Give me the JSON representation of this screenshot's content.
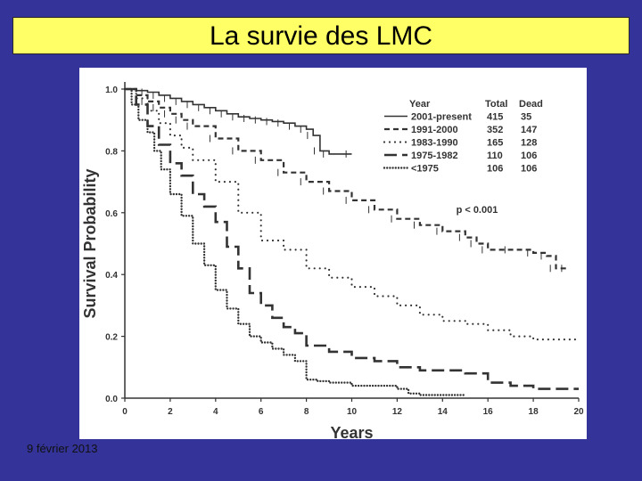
{
  "slide": {
    "title": "La survie des LMC",
    "footer_date": "9 février 2013",
    "colors": {
      "background": "#333399",
      "title_bar": "#ffff66",
      "panel": "#ffffff",
      "ink": "#333333"
    }
  },
  "chart_data": {
    "type": "line",
    "title": "",
    "xlabel": "Years",
    "ylabel": "Survival  Probability",
    "xlim": [
      0,
      20
    ],
    "ylim": [
      0,
      1.0
    ],
    "x_ticks": [
      0,
      2,
      4,
      6,
      8,
      10,
      12,
      14,
      16,
      18,
      20
    ],
    "y_ticks": [
      0.0,
      0.2,
      0.4,
      0.6,
      0.8,
      1.0
    ],
    "y_tick_labels": [
      "0.0",
      "0.2",
      "0.4",
      "0.6",
      "0.8",
      "1.0"
    ],
    "grid": false,
    "legend_position": "top-right",
    "legend_headers": {
      "year": "Year",
      "total": "Total",
      "dead": "Dead"
    },
    "annotation": "p < 0.001",
    "series": [
      {
        "name": "2001-present",
        "total": "415",
        "dead": "35",
        "style": "solid",
        "x": [
          0,
          0.5,
          1,
          1.5,
          2,
          2.5,
          3,
          3.5,
          4,
          4.5,
          5,
          5.5,
          6,
          6.5,
          7,
          7.5,
          8,
          8.3,
          8.6,
          9,
          10
        ],
        "y": [
          1.0,
          0.995,
          0.99,
          0.98,
          0.97,
          0.96,
          0.95,
          0.94,
          0.93,
          0.92,
          0.91,
          0.905,
          0.9,
          0.895,
          0.89,
          0.88,
          0.87,
          0.85,
          0.8,
          0.79,
          0.79
        ]
      },
      {
        "name": "1991-2000",
        "total": "352",
        "dead": "147",
        "style": "dash-short",
        "x": [
          0,
          0.5,
          1,
          1.5,
          2,
          2.5,
          3,
          4,
          5,
          6,
          7,
          8,
          9,
          10,
          11,
          12,
          13,
          14,
          15,
          15.5,
          16,
          17,
          18,
          18.6,
          19,
          19.5
        ],
        "y": [
          1.0,
          0.98,
          0.96,
          0.94,
          0.92,
          0.9,
          0.88,
          0.84,
          0.8,
          0.77,
          0.73,
          0.7,
          0.67,
          0.64,
          0.61,
          0.58,
          0.56,
          0.54,
          0.52,
          0.5,
          0.48,
          0.48,
          0.47,
          0.46,
          0.42,
          0.42
        ]
      },
      {
        "name": "1983-1990",
        "total": "165",
        "dead": "128",
        "style": "dotted-sparse",
        "x": [
          0,
          0.5,
          1,
          1.5,
          2,
          2.5,
          3,
          4,
          5,
          6,
          7,
          8,
          9,
          10,
          11,
          12,
          13,
          14,
          15,
          16,
          17,
          18,
          19,
          20
        ],
        "y": [
          1.0,
          0.97,
          0.93,
          0.89,
          0.85,
          0.81,
          0.77,
          0.7,
          0.6,
          0.51,
          0.48,
          0.42,
          0.39,
          0.36,
          0.33,
          0.3,
          0.27,
          0.25,
          0.24,
          0.22,
          0.2,
          0.19,
          0.19,
          0.19
        ]
      },
      {
        "name": "1975-1982",
        "total": "110",
        "dead": "106",
        "style": "dash-long",
        "x": [
          0,
          0.5,
          1,
          1.5,
          2,
          2.5,
          3,
          3.5,
          4,
          4.5,
          5,
          5.5,
          6,
          6.5,
          7,
          7.5,
          8,
          9,
          10,
          11,
          12,
          13,
          14,
          15,
          16,
          17,
          18,
          19,
          20
        ],
        "y": [
          1.0,
          0.95,
          0.88,
          0.82,
          0.76,
          0.72,
          0.66,
          0.62,
          0.57,
          0.49,
          0.42,
          0.34,
          0.3,
          0.26,
          0.23,
          0.21,
          0.17,
          0.15,
          0.13,
          0.12,
          0.1,
          0.09,
          0.09,
          0.08,
          0.05,
          0.04,
          0.03,
          0.03,
          0.03
        ]
      },
      {
        "name": "<1975",
        "total": "106",
        "dead": "106",
        "style": "dotted-dense",
        "x": [
          0,
          0.3,
          0.6,
          1,
          1.3,
          1.6,
          2,
          2.5,
          3,
          3.5,
          4,
          4.5,
          5,
          5.5,
          6,
          6.5,
          7,
          7.5,
          8,
          8.5,
          9,
          10,
          11,
          12,
          12.5,
          13,
          14,
          15
        ],
        "y": [
          1.0,
          0.95,
          0.9,
          0.86,
          0.8,
          0.74,
          0.66,
          0.59,
          0.5,
          0.43,
          0.35,
          0.29,
          0.24,
          0.2,
          0.18,
          0.16,
          0.14,
          0.12,
          0.06,
          0.055,
          0.05,
          0.04,
          0.04,
          0.03,
          0.015,
          0.01,
          0.01,
          0.01
        ]
      }
    ]
  }
}
